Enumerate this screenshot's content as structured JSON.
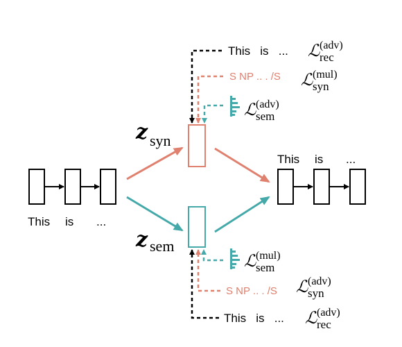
{
  "colors": {
    "syn": "#e0806e",
    "sem": "#45a9aa",
    "black": "#000000"
  },
  "input": {
    "tokens": [
      "This",
      "is",
      "..."
    ]
  },
  "output": {
    "tokens": [
      "This",
      "is",
      "..."
    ]
  },
  "z_syn": {
    "var": "z",
    "sub": "syn"
  },
  "z_sem": {
    "var": "z",
    "sub": "sem"
  },
  "top": {
    "rec_text": "This   is   ...",
    "rec_loss": {
      "sym": "ℒ",
      "sup": "(adv)",
      "sub": "rec"
    },
    "syn_text": "S NP .. . /S",
    "syn_loss": {
      "sym": "ℒ",
      "sup": "(mul)",
      "sub": "syn"
    },
    "sem_loss": {
      "sym": "ℒ",
      "sup": "(adv)",
      "sub": "sem"
    }
  },
  "bottom": {
    "sem_loss": {
      "sym": "ℒ",
      "sup": "(mul)",
      "sub": "sem"
    },
    "syn_text": "S NP .. . /S",
    "syn_loss": {
      "sym": "ℒ",
      "sup": "(adv)",
      "sub": "syn"
    },
    "rec_text": "This   is   ...",
    "rec_loss": {
      "sym": "ℒ",
      "sup": "(adv)",
      "sub": "rec"
    }
  }
}
